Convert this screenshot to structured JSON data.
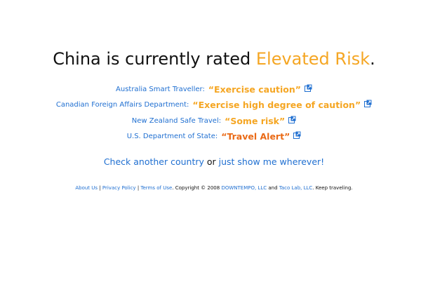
{
  "headline": {
    "country": "China",
    "text_before": " is currently rated ",
    "rating": "Elevated Risk",
    "text_after": "."
  },
  "advisories": [
    {
      "source": "Australia Smart Traveller:",
      "rating": "“Exercise caution”",
      "color": "#f5a623",
      "icon": "external-link-icon"
    },
    {
      "source": "Canadian Foreign Affairs Department:",
      "rating": "“Exercise high degree of caution”",
      "color": "#f5a623",
      "icon": "external-link-icon"
    },
    {
      "source": "New Zealand Safe Travel:",
      "rating": "“Some risk”",
      "color": "#f5a623",
      "icon": "external-link-icon"
    },
    {
      "source": "U.S. Department of State:",
      "rating": "“Travel Alert”",
      "color": "#ea6a16",
      "icon": "external-link-icon"
    }
  ],
  "cta": {
    "check_another": "Check another country",
    "or": " or ",
    "show_me": "just show me wherever!"
  },
  "footer": {
    "about": "About Us",
    "sep1": " | ",
    "privacy": "Privacy Policy",
    "sep2": " | ",
    "terms": "Terms of Use",
    "copyright": ". Copyright © 2008 ",
    "downtempo": "DOWNTEMPO, LLC",
    "and": " and ",
    "tacolab": "Taco Lab, LLC",
    "tail": ". Keep traveling."
  },
  "colors": {
    "link": "#1f6fd1",
    "elevated_risk": "#f5a623",
    "alert": "#ea6a16",
    "text": "#111111",
    "background": "#ffffff"
  }
}
